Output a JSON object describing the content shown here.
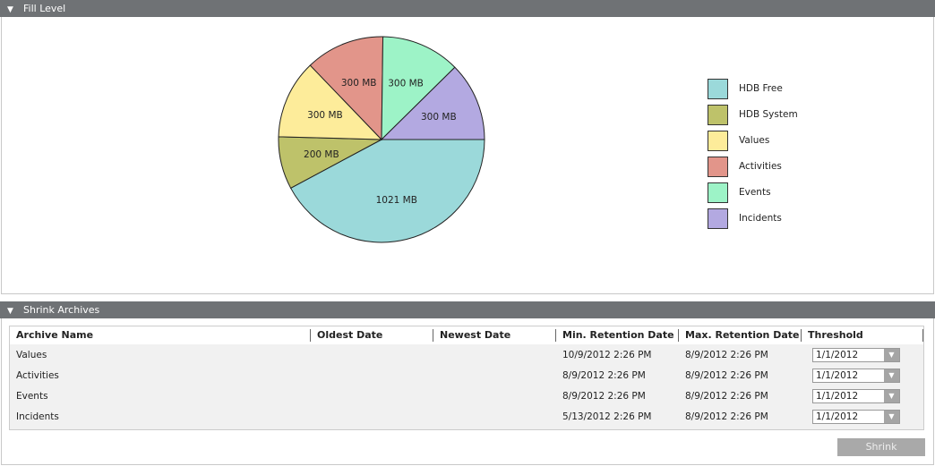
{
  "fill_level": {
    "title": "Fill Level"
  },
  "shrink_archives": {
    "title": "Shrink Archives",
    "shrink_label": "Shrink",
    "columns": [
      "Archive Name",
      "Oldest Date",
      "Newest Date",
      "Min. Retention Date",
      "Max. Retention Date",
      "Threshold"
    ],
    "rows": [
      {
        "name": "Values",
        "oldest": "",
        "newest": "",
        "min": "10/9/2012 2:26 PM",
        "max": "8/9/2012 2:26 PM",
        "threshold": "1/1/2012"
      },
      {
        "name": "Activities",
        "oldest": "",
        "newest": "",
        "min": "8/9/2012 2:26 PM",
        "max": "8/9/2012 2:26 PM",
        "threshold": "1/1/2012"
      },
      {
        "name": "Events",
        "oldest": "",
        "newest": "",
        "min": "8/9/2012 2:26 PM",
        "max": "8/9/2012 2:26 PM",
        "threshold": "1/1/2012"
      },
      {
        "name": "Incidents",
        "oldest": "",
        "newest": "",
        "min": "5/13/2012 2:26 PM",
        "max": "8/9/2012 2:26 PM",
        "threshold": "1/1/2012"
      }
    ]
  },
  "chart_data": {
    "type": "pie",
    "unit": "MB",
    "legend": "right",
    "slices": [
      {
        "name": "HDB Free",
        "value": 1021,
        "label": "1021 MB",
        "color": "#9bd9da"
      },
      {
        "name": "HDB System",
        "value": 200,
        "label": "200 MB",
        "color": "#bec26a"
      },
      {
        "name": "Values",
        "value": 300,
        "label": "300 MB",
        "color": "#fdec9a"
      },
      {
        "name": "Activities",
        "value": 300,
        "label": "300 MB",
        "color": "#e2958a"
      },
      {
        "name": "Events",
        "value": 300,
        "label": "300 MB",
        "color": "#9df3c7"
      },
      {
        "name": "Incidents",
        "value": 300,
        "label": "300 MB",
        "color": "#b3a9e1"
      }
    ]
  }
}
